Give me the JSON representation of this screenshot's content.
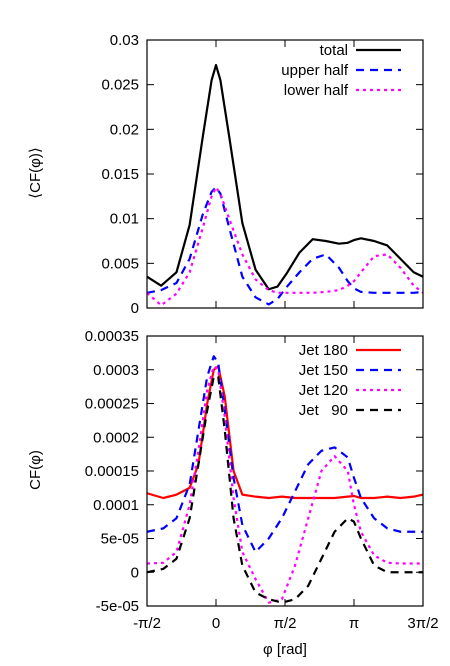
{
  "chart_data": [
    {
      "type": "line",
      "ylabel": "⟨CF(φ)⟩",
      "xlabel": "",
      "xlim": [
        -1.5708,
        4.7124
      ],
      "ylim": [
        0,
        0.03
      ],
      "yticks": [
        "0",
        "0.005",
        "0.01",
        "0.015",
        "0.02",
        "0.025",
        "0.03"
      ],
      "yticks_values": [
        0,
        0.005,
        0.01,
        0.015,
        0.02,
        0.025,
        0.03
      ],
      "legend_position": "top-right",
      "x": [
        -1.571,
        -1.25,
        -0.9,
        -0.6,
        -0.3,
        -0.1,
        0.0,
        0.1,
        0.3,
        0.6,
        0.9,
        1.2,
        1.4,
        1.6,
        1.9,
        2.2,
        2.5,
        2.8,
        3.0,
        3.14,
        3.3,
        3.6,
        3.9,
        4.2,
        4.5,
        4.712
      ],
      "series": [
        {
          "name": "total",
          "color": "#000000",
          "dash": "solid",
          "values": [
            0.0035,
            0.0025,
            0.004,
            0.0093,
            0.0192,
            0.0255,
            0.0272,
            0.0255,
            0.0192,
            0.0095,
            0.0043,
            0.0021,
            0.0024,
            0.0038,
            0.0062,
            0.0077,
            0.0075,
            0.0072,
            0.0073,
            0.0076,
            0.0078,
            0.0075,
            0.007,
            0.0055,
            0.004,
            0.0035
          ]
        },
        {
          "name": "upper half",
          "color": "#0000ff",
          "dash": "8,6",
          "values": [
            0.0017,
            0.002,
            0.0028,
            0.0055,
            0.0105,
            0.013,
            0.0135,
            0.0128,
            0.009,
            0.0035,
            0.0012,
            0.0004,
            0.001,
            0.0023,
            0.004,
            0.0055,
            0.006,
            0.0045,
            0.003,
            0.0022,
            0.0018,
            0.0017,
            0.0017,
            0.0017,
            0.0017,
            0.0018
          ]
        },
        {
          "name": "lower half",
          "color": "#ff00ff",
          "dash": "3,4",
          "values": [
            0.0017,
            0.0003,
            0.0016,
            0.004,
            0.009,
            0.0125,
            0.0135,
            0.0128,
            0.01,
            0.006,
            0.0032,
            0.002,
            0.0017,
            0.0017,
            0.0017,
            0.0017,
            0.0018,
            0.002,
            0.0025,
            0.003,
            0.004,
            0.0058,
            0.006,
            0.0045,
            0.0025,
            0.0017
          ]
        }
      ]
    },
    {
      "type": "line",
      "ylabel": "CF(φ)",
      "xlabel": "φ [rad]",
      "xlim": [
        -1.5708,
        4.7124
      ],
      "ylim": [
        -5e-05,
        0.00035
      ],
      "xticks": [
        "-π/2",
        "0",
        "π/2",
        "π",
        "3π/2"
      ],
      "xticks_values": [
        -1.5708,
        0,
        1.5708,
        3.1416,
        4.7124
      ],
      "yticks": [
        "-5e-05",
        "0",
        "5e-05",
        "0.0001",
        "0.00015",
        "0.0002",
        "0.00025",
        "0.0003",
        "0.00035"
      ],
      "yticks_values": [
        -5e-05,
        0,
        5e-05,
        0.0001,
        0.00015,
        0.0002,
        0.00025,
        0.0003,
        0.00035
      ],
      "legend_position": "top-right",
      "x": [
        -1.571,
        -1.2,
        -0.9,
        -0.6,
        -0.4,
        -0.2,
        -0.05,
        0.05,
        0.2,
        0.4,
        0.6,
        0.9,
        1.2,
        1.5,
        1.8,
        2.1,
        2.4,
        2.7,
        3.0,
        3.14,
        3.3,
        3.6,
        3.9,
        4.2,
        4.5,
        4.712
      ],
      "series": [
        {
          "name": "Jet 180",
          "color": "#ff0000",
          "dash": "solid",
          "values": [
            0.000117,
            0.00011,
            0.000115,
            0.000125,
            0.00016,
            0.00025,
            0.0003,
            0.000305,
            0.00026,
            0.00015,
            0.000115,
            0.000112,
            0.00011,
            0.000112,
            0.00011,
            0.00011,
            0.00011,
            0.00011,
            0.000112,
            0.000113,
            0.00011,
            0.00011,
            0.000112,
            0.00011,
            0.000112,
            0.000115
          ]
        },
        {
          "name": "Jet 150",
          "color": "#0000ff",
          "dash": "8,6",
          "values": [
            6e-05,
            6.5e-05,
            8e-05,
            0.00013,
            0.00021,
            0.00029,
            0.00032,
            0.00031,
            0.00024,
            0.00014,
            7e-05,
            3e-05,
            5e-05,
            8e-05,
            0.00012,
            0.00016,
            0.00018,
            0.000185,
            0.00017,
            0.00014,
            0.00011,
            8e-05,
            6.5e-05,
            6e-05,
            6e-05,
            6e-05
          ]
        },
        {
          "name": "Jet 120",
          "color": "#ff00ff",
          "dash": "3,4",
          "values": [
            1.3e-05,
            1.4e-05,
            3e-05,
            0.0001,
            0.00018,
            0.00027,
            0.000305,
            0.0003,
            0.00023,
            0.00011,
            3e-05,
            -1e-05,
            -4.5e-05,
            -4e-05,
            1e-05,
            8e-05,
            0.00015,
            0.000172,
            0.00015,
            0.0001,
            6e-05,
            2.5e-05,
            1.4e-05,
            1.3e-05,
            1.3e-05,
            1.3e-05
          ]
        },
        {
          "name": "Jet 90",
          "legend_label": "Jet   90",
          "color": "#000000",
          "dash": "8,6",
          "values": [
            0.0,
            5e-06,
            2e-05,
            8e-05,
            0.00016,
            0.00024,
            0.00029,
            0.00029,
            0.00021,
            8e-05,
            1e-05,
            -3e-05,
            -4e-05,
            -4.5e-05,
            -4e-05,
            -2e-05,
            2e-05,
            6e-05,
            8e-05,
            7.5e-05,
            5e-05,
            1e-05,
            0.0,
            0.0,
            0.0,
            0.0
          ]
        }
      ]
    }
  ]
}
